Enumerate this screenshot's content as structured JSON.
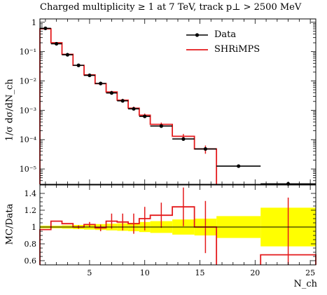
{
  "title": "Charged multiplicity ≥ 1 at 7 TeV, track p⊥ > 2500 MeV",
  "colors": {
    "data": "#000000",
    "mc": "#e41a1c",
    "band": "#ffff00"
  },
  "chart_data": [
    {
      "type": "line",
      "panel": "main",
      "ylabel": "1/σ dσ/dN_ch",
      "xlabel": "",
      "log_y": true,
      "xlim": [
        0.5,
        25.5
      ],
      "ylim": [
        3e-06,
        1.3
      ],
      "y_ticks": [
        1,
        0.1,
        0.01,
        0.001,
        0.0001,
        1e-05
      ],
      "y_tick_labels": [
        "1",
        "10⁻¹",
        "10⁻²",
        "10⁻³",
        "10⁻⁴",
        "10⁻⁵"
      ],
      "legend": {
        "position": "top-right",
        "entries": [
          "Data",
          "SHRiMPS"
        ]
      },
      "series": [
        {
          "name": "Data",
          "points": [
            {
              "x": 1,
              "xlo": 0.5,
              "xhi": 1.5,
              "y": 0.62
            },
            {
              "x": 2,
              "xlo": 1.5,
              "xhi": 2.5,
              "y": 0.185
            },
            {
              "x": 3,
              "xlo": 2.5,
              "xhi": 3.5,
              "y": 0.078
            },
            {
              "x": 4,
              "xlo": 3.5,
              "xhi": 4.5,
              "y": 0.034
            },
            {
              "x": 5,
              "xlo": 4.5,
              "xhi": 5.5,
              "y": 0.0155
            },
            {
              "x": 6,
              "xlo": 5.5,
              "xhi": 6.5,
              "y": 0.0082
            },
            {
              "x": 7,
              "xlo": 6.5,
              "xhi": 7.5,
              "y": 0.0039
            },
            {
              "x": 8,
              "xlo": 7.5,
              "xhi": 8.5,
              "y": 0.0021
            },
            {
              "x": 9,
              "xlo": 8.5,
              "xhi": 9.5,
              "y": 0.00112
            },
            {
              "x": 10,
              "xlo": 9.5,
              "xhi": 10.5,
              "y": 0.00062
            },
            {
              "x": 11.5,
              "xlo": 10.5,
              "xhi": 12.5,
              "y": 0.00029
            },
            {
              "x": 13.5,
              "xlo": 12.5,
              "xhi": 14.5,
              "y": 0.000105
            },
            {
              "x": 15.5,
              "xlo": 14.5,
              "xhi": 16.5,
              "y": 4.8e-05
            },
            {
              "x": 18.5,
              "xlo": 16.5,
              "xhi": 20.5,
              "y": 1.25e-05
            },
            {
              "x": 23,
              "xlo": 20.5,
              "xhi": 25.5,
              "y": 3.1e-06
            }
          ]
        },
        {
          "name": "SHRiMPS",
          "bins": [
            {
              "xlo": 0.5,
              "xhi": 1.5,
              "y": 0.6,
              "err": 0
            },
            {
              "xlo": 1.5,
              "xhi": 2.5,
              "y": 0.2,
              "err": 0
            },
            {
              "xlo": 2.5,
              "xhi": 3.5,
              "y": 0.081,
              "err": 0
            },
            {
              "xlo": 3.5,
              "xhi": 4.5,
              "y": 0.034,
              "err": 0
            },
            {
              "xlo": 4.5,
              "xhi": 5.5,
              "y": 0.016,
              "err": 0
            },
            {
              "xlo": 5.5,
              "xhi": 6.5,
              "y": 0.0081,
              "err": 0
            },
            {
              "xlo": 6.5,
              "xhi": 7.5,
              "y": 0.0042,
              "err": 0.0004
            },
            {
              "xlo": 7.5,
              "xhi": 8.5,
              "y": 0.0022,
              "err": 0.00025
            },
            {
              "xlo": 8.5,
              "xhi": 9.5,
              "y": 0.00118,
              "err": 0.00015
            },
            {
              "xlo": 9.5,
              "xhi": 10.5,
              "y": 0.00068,
              "err": 9e-05
            },
            {
              "xlo": 10.5,
              "xhi": 12.5,
              "y": 0.00033,
              "err": 5e-05
            },
            {
              "xlo": 12.5,
              "xhi": 14.5,
              "y": 0.00013,
              "err": 2.5e-05
            },
            {
              "xlo": 14.5,
              "xhi": 16.5,
              "y": 4.8e-05,
              "err": 1.5e-05
            },
            {
              "xlo": 16.5,
              "xhi": 20.5,
              "y": null,
              "err": 0
            },
            {
              "xlo": 20.5,
              "xhi": 25.5,
              "y": 2.1e-06,
              "err": 1.2e-06
            }
          ]
        }
      ]
    },
    {
      "type": "line",
      "panel": "ratio",
      "ylabel": "MC/Data",
      "xlabel": "N_ch",
      "xlim": [
        0.5,
        25.5
      ],
      "ylim": [
        0.55,
        1.5
      ],
      "x_ticks": [
        5,
        10,
        15,
        20,
        25
      ],
      "y_ticks": [
        0.6,
        0.8,
        1.0,
        1.2,
        1.4
      ],
      "y_tick_labels": [
        "0.6",
        "0.8",
        "1",
        "1.2",
        "1.4"
      ],
      "band": [
        {
          "xlo": 0.5,
          "xhi": 1.5,
          "lo": 0.985,
          "hi": 1.015
        },
        {
          "xlo": 1.5,
          "xhi": 2.5,
          "lo": 0.985,
          "hi": 1.015
        },
        {
          "xlo": 2.5,
          "xhi": 3.5,
          "lo": 0.98,
          "hi": 1.02
        },
        {
          "xlo": 3.5,
          "xhi": 4.5,
          "lo": 0.975,
          "hi": 1.025
        },
        {
          "xlo": 4.5,
          "xhi": 5.5,
          "lo": 0.97,
          "hi": 1.03
        },
        {
          "xlo": 5.5,
          "xhi": 6.5,
          "lo": 0.965,
          "hi": 1.035
        },
        {
          "xlo": 6.5,
          "xhi": 7.5,
          "lo": 0.96,
          "hi": 1.04
        },
        {
          "xlo": 7.5,
          "xhi": 8.5,
          "lo": 0.955,
          "hi": 1.045
        },
        {
          "xlo": 8.5,
          "xhi": 9.5,
          "lo": 0.95,
          "hi": 1.05
        },
        {
          "xlo": 9.5,
          "xhi": 10.5,
          "lo": 0.94,
          "hi": 1.06
        },
        {
          "xlo": 10.5,
          "xhi": 12.5,
          "lo": 0.93,
          "hi": 1.07
        },
        {
          "xlo": 12.5,
          "xhi": 14.5,
          "lo": 0.91,
          "hi": 1.09
        },
        {
          "xlo": 14.5,
          "xhi": 16.5,
          "lo": 0.9,
          "hi": 1.1
        },
        {
          "xlo": 16.5,
          "xhi": 20.5,
          "lo": 0.87,
          "hi": 1.13
        },
        {
          "xlo": 20.5,
          "xhi": 25.5,
          "lo": 0.77,
          "hi": 1.23
        }
      ],
      "series": [
        {
          "name": "SHRiMPS",
          "bins": [
            {
              "xlo": 0.5,
              "xhi": 1.5,
              "y": 0.97,
              "err": 0
            },
            {
              "xlo": 1.5,
              "xhi": 2.5,
              "y": 1.07,
              "err": 0
            },
            {
              "xlo": 2.5,
              "xhi": 3.5,
              "y": 1.04,
              "err": 0
            },
            {
              "xlo": 3.5,
              "xhi": 4.5,
              "y": 1.0,
              "err": 0.02
            },
            {
              "xlo": 4.5,
              "xhi": 5.5,
              "y": 1.03,
              "err": 0.03
            },
            {
              "xlo": 5.5,
              "xhi": 6.5,
              "y": 0.99,
              "err": 0.04
            },
            {
              "xlo": 6.5,
              "xhi": 7.5,
              "y": 1.07,
              "err": 0.09
            },
            {
              "xlo": 7.5,
              "xhi": 8.5,
              "y": 1.06,
              "err": 0.1
            },
            {
              "xlo": 8.5,
              "xhi": 9.5,
              "y": 1.04,
              "err": 0.12
            },
            {
              "xlo": 9.5,
              "xhi": 10.5,
              "y": 1.1,
              "err": 0.14
            },
            {
              "xlo": 10.5,
              "xhi": 12.5,
              "y": 1.14,
              "err": 0.15
            },
            {
              "xlo": 12.5,
              "xhi": 14.5,
              "y": 1.24,
              "err": 0.23
            },
            {
              "xlo": 14.5,
              "xhi": 16.5,
              "y": 1.0,
              "err": 0.31
            },
            {
              "xlo": 16.5,
              "xhi": 20.5,
              "y": null,
              "err": 0
            },
            {
              "xlo": 20.5,
              "xhi": 25.5,
              "y": 0.67,
              "err": 0.68
            }
          ]
        }
      ]
    }
  ]
}
